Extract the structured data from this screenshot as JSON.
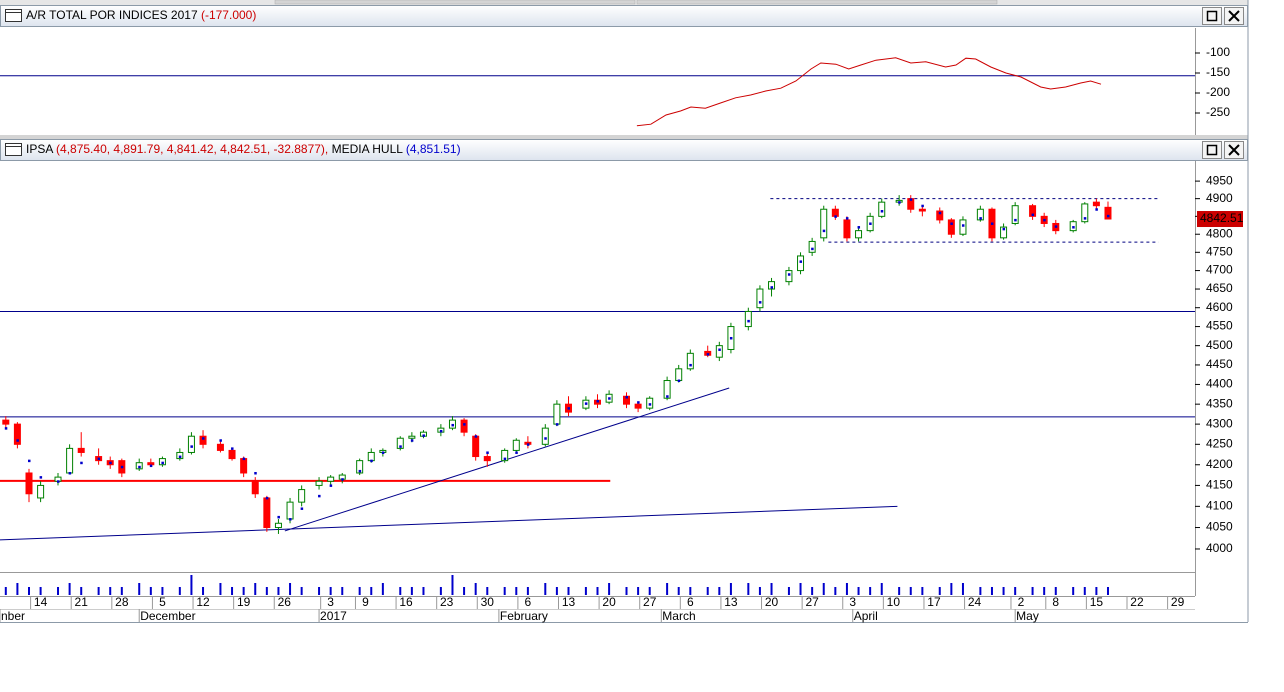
{
  "chart_data": [
    {
      "type": "line",
      "title": "A/R TOTAL POR INDICES 2017",
      "title_value": "(-177.000)",
      "xlim": [
        -3,
        203
      ],
      "ylim": [
        -305,
        -37.5
      ],
      "yticks": [
        -100,
        -150,
        -200,
        -250
      ],
      "hlines": [
        {
          "value": -157,
          "color": "#00008b"
        }
      ],
      "series": [
        {
          "color": "#cc0000",
          "x": [
            106.8,
            109.2,
            111.8,
            114.3,
            116.1,
            118.6,
            121.2,
            123.8,
            126.4,
            129.0,
            131.6,
            134.2,
            136.8,
            138.5,
            141.1,
            143.3,
            145.4,
            148.0,
            151.4,
            154.0,
            156.6,
            160.0,
            161.8,
            163.5,
            165.2,
            167.8,
            170.4,
            173.0,
            176.4,
            178.1,
            180.7,
            183.3,
            185.0,
            186.8
          ],
          "values": [
            -282,
            -278,
            -255,
            -245,
            -235,
            -238,
            -225,
            -212,
            -205,
            -195,
            -188,
            -170,
            -140,
            -125,
            -128,
            -140,
            -130,
            -118,
            -112,
            -125,
            -122,
            -135,
            -130,
            -113,
            -115,
            -135,
            -150,
            -160,
            -185,
            -190,
            -185,
            -175,
            -170,
            -178
          ]
        }
      ]
    },
    {
      "type": "candlestick",
      "title": "IPSA",
      "title_values": "(4,875.40, 4,891.79, 4,841.42, 4,842.51, -32.8877),",
      "last_label": "4842.51",
      "log_scale": true,
      "xlim": [
        -3,
        203
      ],
      "ylim": [
        3947,
        5008
      ],
      "yticks": [
        4000,
        4050,
        4100,
        4150,
        4200,
        4250,
        4300,
        4350,
        4400,
        4450,
        4500,
        4550,
        4600,
        4650,
        4700,
        4750,
        4800,
        4850,
        4900,
        4950
      ],
      "xticks": [
        {
          "value": 4,
          "label": "14"
        },
        {
          "value": 11,
          "label": "21"
        },
        {
          "value": 18,
          "label": "28"
        },
        {
          "value": 25,
          "label": "5"
        },
        {
          "value": 32,
          "label": "12"
        },
        {
          "value": 39,
          "label": "19"
        },
        {
          "value": 46,
          "label": "26"
        },
        {
          "value": 54,
          "label": "3"
        },
        {
          "value": 60,
          "label": "9"
        },
        {
          "value": 67,
          "label": "16"
        },
        {
          "value": 74,
          "label": "23"
        },
        {
          "value": 81,
          "label": "30"
        },
        {
          "value": 88,
          "label": "6"
        },
        {
          "value": 95,
          "label": "13"
        },
        {
          "value": 102,
          "label": "20"
        },
        {
          "value": 109,
          "label": "27"
        },
        {
          "value": 116,
          "label": "6"
        },
        {
          "value": 123,
          "label": "13"
        },
        {
          "value": 130,
          "label": "20"
        },
        {
          "value": 137,
          "label": "27"
        },
        {
          "value": 144,
          "label": "3"
        },
        {
          "value": 151,
          "label": "10"
        },
        {
          "value": 158,
          "label": "17"
        },
        {
          "value": 165,
          "label": "24"
        },
        {
          "value": 173,
          "label": "2"
        },
        {
          "value": 179,
          "label": "8"
        },
        {
          "value": 186,
          "label": "15"
        },
        {
          "value": 193,
          "label": "22"
        },
        {
          "value": 200,
          "label": "29"
        }
      ],
      "months": [
        {
          "value": -3,
          "label": "nber"
        },
        {
          "value": 21,
          "label": "December"
        },
        {
          "value": 52,
          "label": "2017"
        },
        {
          "value": 83,
          "label": "February"
        },
        {
          "value": 111,
          "label": "March"
        },
        {
          "value": 144,
          "label": "April"
        },
        {
          "value": 172,
          "label": "May"
        }
      ],
      "up_color": "#008000",
      "down_color": "#ff0000",
      "volume_color": "#0000cc",
      "x": [
        -2,
        0,
        2,
        4,
        7,
        9,
        11,
        14,
        16,
        18,
        21,
        23,
        25,
        28,
        30,
        32,
        35,
        37,
        39,
        41,
        43,
        45,
        47,
        49,
        52,
        54,
        56,
        59,
        61,
        63,
        66,
        68,
        70,
        73,
        75,
        77,
        79,
        81,
        84,
        86,
        88,
        91,
        93,
        95,
        98,
        100,
        102,
        105,
        107,
        109,
        112,
        114,
        116,
        119,
        121,
        123,
        126,
        128,
        130,
        133,
        135,
        137,
        139,
        141,
        143,
        145,
        147,
        149,
        152,
        154,
        156,
        159,
        161,
        163,
        166,
        168,
        170,
        172,
        175,
        177,
        179,
        182,
        184,
        186,
        188
      ],
      "open": [
        4310,
        4300,
        4180,
        4120,
        4160,
        4180,
        4240,
        4220,
        4210,
        4210,
        4190,
        4205,
        4200,
        4215,
        4230,
        4270,
        4250,
        4235,
        4215,
        4160,
        4120,
        4050,
        4070,
        4110,
        4150,
        4160,
        4165,
        4180,
        4210,
        4230,
        4240,
        4265,
        4270,
        4280,
        4290,
        4310,
        4270,
        4220,
        4210,
        4235,
        4255,
        4250,
        4300,
        4350,
        4340,
        4360,
        4355,
        4370,
        4350,
        4340,
        4365,
        4410,
        4440,
        4485,
        4470,
        4490,
        4550,
        4600,
        4650,
        4670,
        4700,
        4750,
        4790,
        4870,
        4840,
        4790,
        4810,
        4850,
        4890,
        4900,
        4870,
        4865,
        4840,
        4800,
        4840,
        4870,
        4790,
        4830,
        4880,
        4850,
        4830,
        4810,
        4835,
        4890,
        4875.4
      ],
      "high": [
        4320,
        4305,
        4190,
        4160,
        4180,
        4250,
        4280,
        4240,
        4220,
        4215,
        4215,
        4215,
        4220,
        4240,
        4280,
        4285,
        4260,
        4240,
        4220,
        4170,
        4125,
        4070,
        4120,
        4150,
        4170,
        4175,
        4180,
        4215,
        4240,
        4240,
        4270,
        4280,
        4285,
        4300,
        4320,
        4315,
        4275,
        4230,
        4240,
        4265,
        4270,
        4300,
        4360,
        4370,
        4370,
        4375,
        4385,
        4380,
        4355,
        4370,
        4420,
        4450,
        4490,
        4500,
        4510,
        4560,
        4600,
        4660,
        4680,
        4710,
        4750,
        4790,
        4880,
        4880,
        4850,
        4820,
        4860,
        4900,
        4910,
        4910,
        4880,
        4875,
        4845,
        4850,
        4880,
        4875,
        4830,
        4890,
        4885,
        4860,
        4840,
        4840,
        4890,
        4900,
        4891.79
      ],
      "low": [
        4290,
        4240,
        4110,
        4110,
        4150,
        4180,
        4220,
        4200,
        4190,
        4170,
        4185,
        4195,
        4195,
        4210,
        4225,
        4240,
        4230,
        4210,
        4170,
        4120,
        4040,
        4035,
        4060,
        4100,
        4140,
        4150,
        4155,
        4175,
        4205,
        4220,
        4235,
        4255,
        4265,
        4270,
        4285,
        4270,
        4210,
        4195,
        4205,
        4230,
        4240,
        4245,
        4295,
        4320,
        4335,
        4340,
        4350,
        4340,
        4330,
        4335,
        4360,
        4405,
        4435,
        4470,
        4460,
        4480,
        4540,
        4590,
        4630,
        4660,
        4690,
        4740,
        4780,
        4840,
        4780,
        4780,
        4805,
        4845,
        4880,
        4860,
        4850,
        4830,
        4790,
        4795,
        4835,
        4780,
        4785,
        4825,
        4840,
        4820,
        4800,
        4805,
        4830,
        4870,
        4841.42
      ],
      "close": [
        4300,
        4250,
        4130,
        4150,
        4170,
        4240,
        4230,
        4210,
        4200,
        4180,
        4205,
        4200,
        4215,
        4230,
        4270,
        4250,
        4235,
        4215,
        4180,
        4130,
        4050,
        4060,
        4110,
        4140,
        4160,
        4170,
        4175,
        4210,
        4230,
        4235,
        4265,
        4270,
        4280,
        4290,
        4310,
        4280,
        4220,
        4210,
        4235,
        4260,
        4250,
        4290,
        4350,
        4330,
        4360,
        4350,
        4375,
        4350,
        4340,
        4365,
        4410,
        4440,
        4480,
        4475,
        4500,
        4550,
        4590,
        4650,
        4670,
        4700,
        4740,
        4780,
        4870,
        4850,
        4790,
        4810,
        4850,
        4890,
        4895,
        4870,
        4865,
        4840,
        4800,
        4840,
        4870,
        4790,
        4820,
        4880,
        4850,
        4830,
        4810,
        4835,
        4885,
        4880,
        4842.51
      ],
      "volume": [
        2,
        3,
        2,
        2,
        2,
        3,
        2,
        2,
        2,
        2,
        3,
        2,
        2,
        2,
        5,
        2,
        3,
        2,
        2,
        3,
        2,
        2,
        3,
        2,
        2,
        2,
        2,
        2,
        2,
        3,
        2,
        2,
        2,
        2,
        5,
        2,
        3,
        2,
        2,
        2,
        2,
        3,
        2,
        2,
        2,
        2,
        3,
        2,
        2,
        2,
        3,
        2,
        2,
        2,
        2,
        3,
        3,
        2,
        3,
        2,
        3,
        2,
        3,
        2,
        3,
        2,
        2,
        3,
        2,
        2,
        2,
        2,
        3,
        3,
        2,
        2,
        2,
        2,
        2,
        2,
        2,
        2,
        2,
        2,
        2
      ],
      "series": [
        {
          "name": "MEDIA HULL",
          "label": "(4,851.51)",
          "color": "#0000cc",
          "values": [
            4290,
            4260,
            4210,
            4170,
            4160,
            4180,
            4205,
            4215,
            4205,
            4195,
            4195,
            4198,
            4205,
            4220,
            4245,
            4265,
            4260,
            4240,
            4215,
            4180,
            4120,
            4075,
            4070,
            4095,
            4125,
            4150,
            4165,
            4185,
            4210,
            4230,
            4245,
            4260,
            4272,
            4283,
            4298,
            4300,
            4270,
            4230,
            4215,
            4230,
            4250,
            4265,
            4300,
            4340,
            4352,
            4358,
            4365,
            4368,
            4355,
            4350,
            4370,
            4410,
            4450,
            4478,
            4490,
            4520,
            4565,
            4615,
            4655,
            4690,
            4725,
            4760,
            4810,
            4850,
            4845,
            4820,
            4830,
            4865,
            4890,
            4898,
            4880,
            4860,
            4830,
            4825,
            4845,
            4830,
            4815,
            4840,
            4855,
            4840,
            4822,
            4820,
            4845,
            4870,
            4851.51
          ]
        }
      ],
      "hlines": [
        {
          "value": 4590,
          "color": "#00008b"
        },
        {
          "value": 4318,
          "color": "#00008b"
        }
      ],
      "lines": [
        {
          "x": [
            -3,
            102.2
          ],
          "y": [
            4161,
            4161
          ],
          "color": "#ff0000",
          "width": 2,
          "dashed": false
        },
        {
          "x": [
            46.1,
            122.7
          ],
          "y": [
            4042,
            4391
          ],
          "color": "#00008b",
          "width": 1,
          "dashed": false
        },
        {
          "x": [
            -3,
            151.7
          ],
          "y": [
            4021,
            4100
          ],
          "color": "#00008b",
          "width": 1,
          "dashed": false
        },
        {
          "x": [
            129.8,
            196.7
          ],
          "y": [
            4900,
            4900
          ],
          "color": "#000080",
          "width": 1,
          "dashed": true
        },
        {
          "x": [
            139.8,
            196.7
          ],
          "y": [
            4778,
            4778
          ],
          "color": "#000080",
          "width": 1,
          "dashed": true
        }
      ]
    }
  ]
}
